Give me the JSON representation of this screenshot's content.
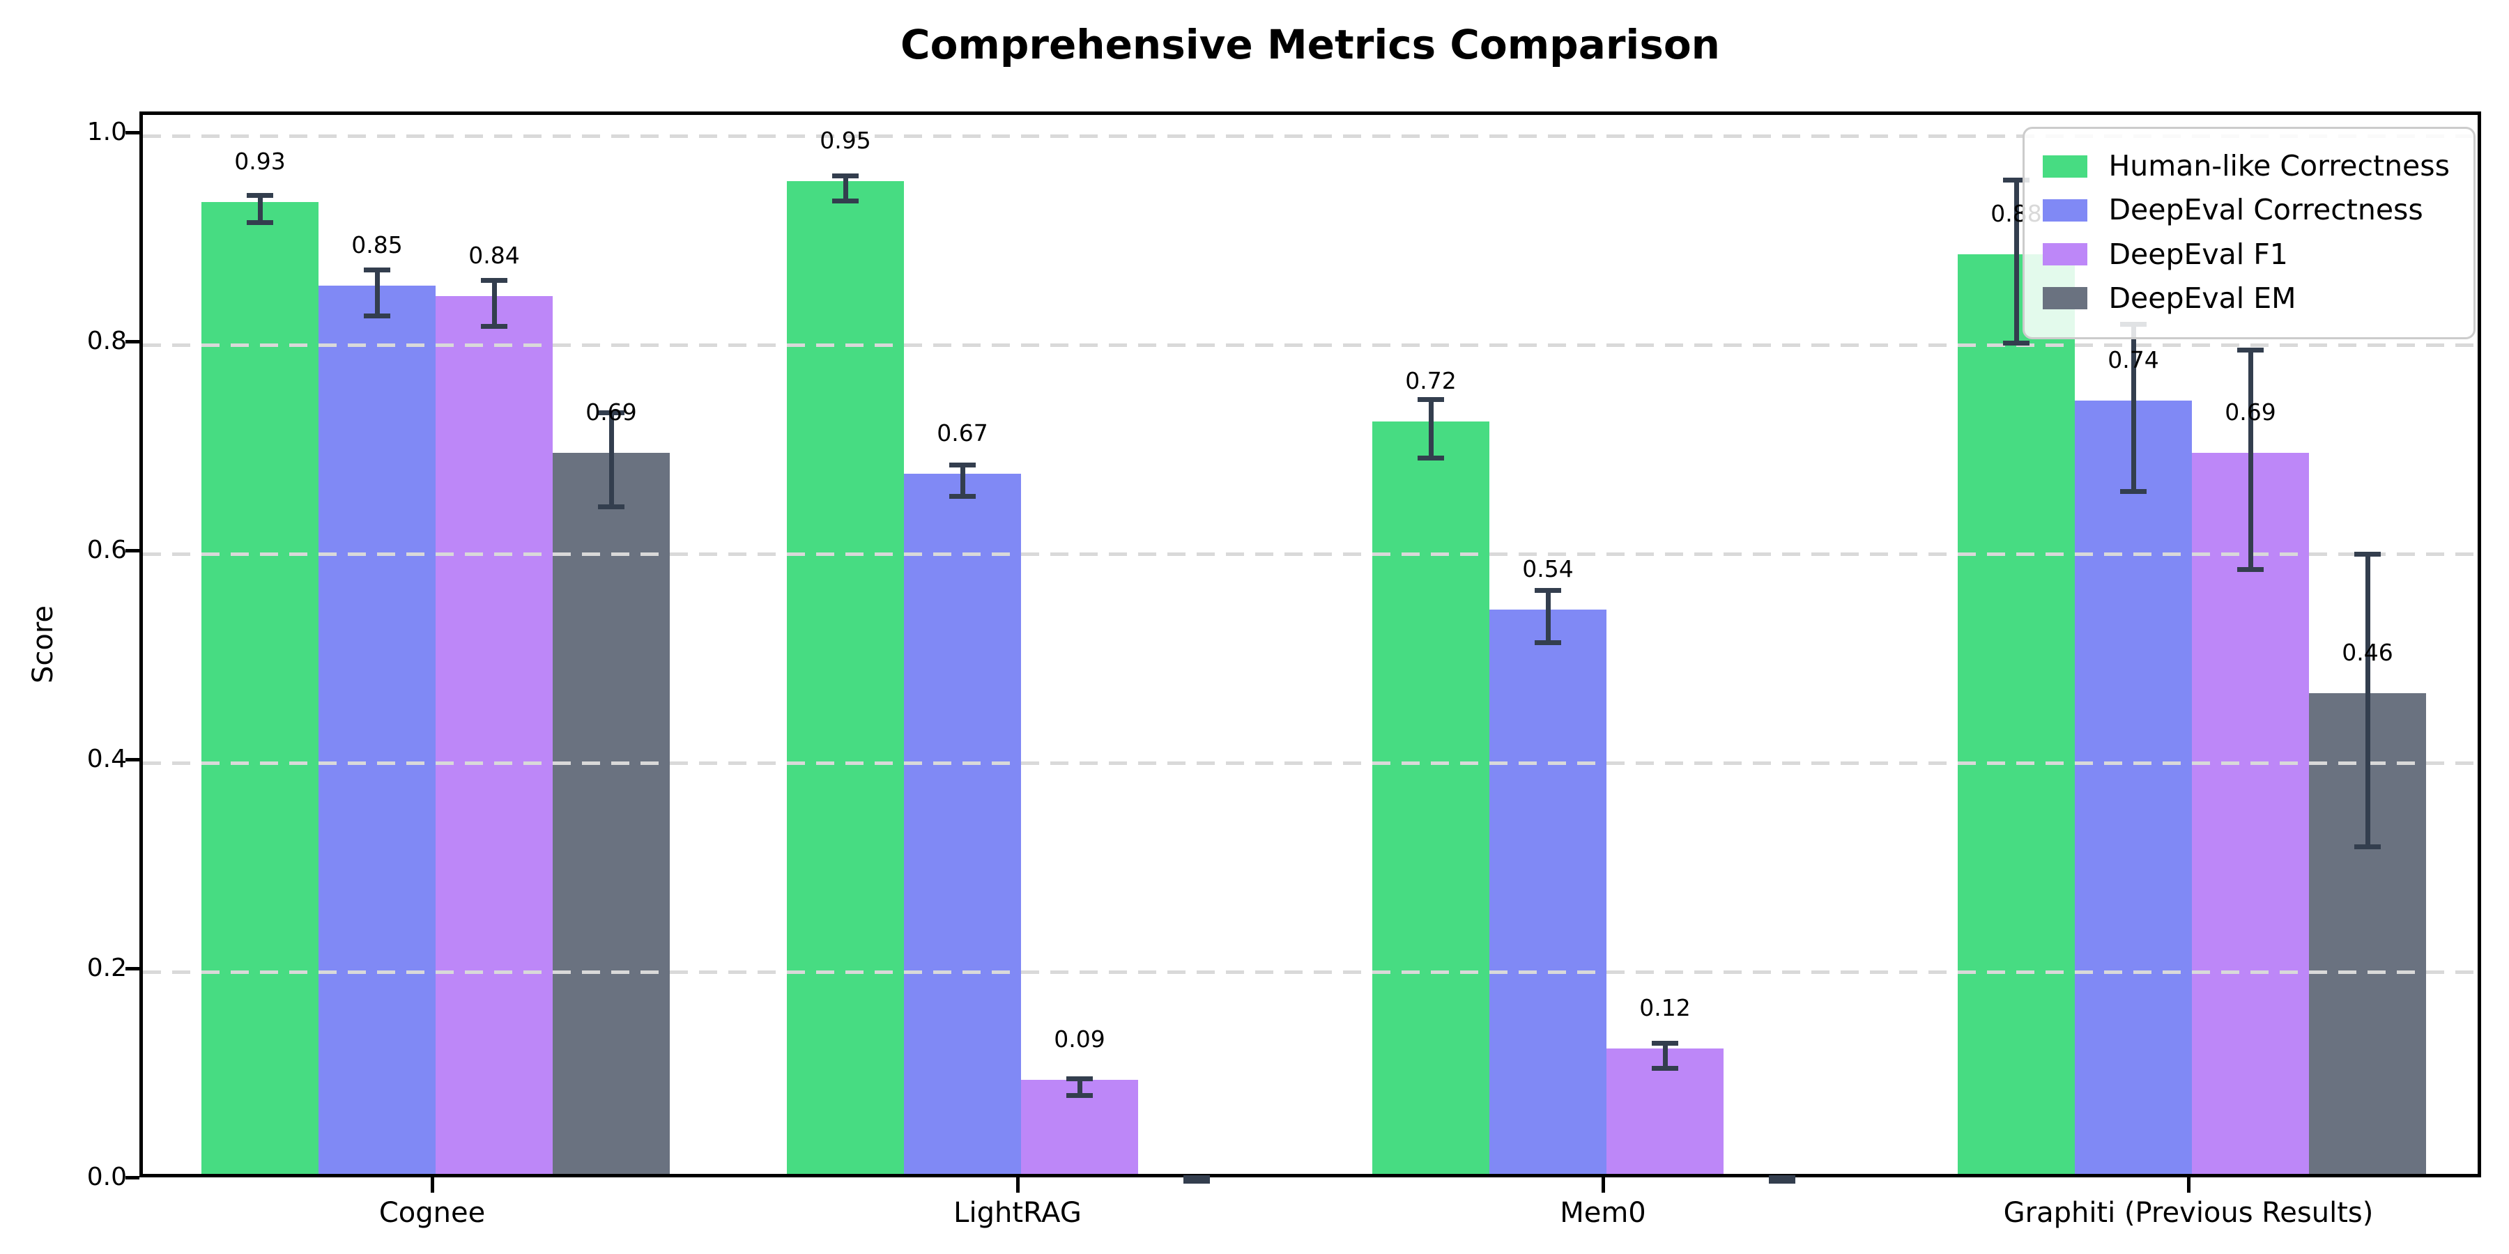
{
  "chart_data": {
    "type": "bar",
    "title": "Comprehensive Metrics Comparison",
    "xlabel": "",
    "ylabel": "Score",
    "categories": [
      "Cognee",
      "LightRAG",
      "Mem0",
      "Graphiti (Previous Results)"
    ],
    "series": [
      {
        "name": "Human-like Correctness",
        "color": "#47dc82",
        "values": [
          0.93,
          0.95,
          0.72,
          0.88
        ],
        "errors": [
          0.013,
          0.012,
          0.028,
          0.078
        ],
        "labels": [
          "0.93",
          "0.95",
          "0.72",
          "0.88"
        ]
      },
      {
        "name": "DeepEval Correctness",
        "color": "#8089f5",
        "values": [
          0.85,
          0.67,
          0.54,
          0.74
        ],
        "errors": [
          0.022,
          0.015,
          0.025,
          0.08
        ],
        "labels": [
          "0.85",
          "0.67",
          "0.54",
          "0.74"
        ]
      },
      {
        "name": "DeepEval F1",
        "color": "#bd87f8",
        "values": [
          0.84,
          0.09,
          0.12,
          0.69
        ],
        "errors": [
          0.022,
          0.008,
          0.012,
          0.105
        ],
        "labels": [
          "0.84",
          "0.09",
          "0.12",
          "0.69"
        ]
      },
      {
        "name": "DeepEval EM",
        "color": "#6a7280",
        "values": [
          0.69,
          0.0,
          0.0,
          0.46
        ],
        "errors": [
          0.045,
          0.003,
          0.003,
          0.14
        ],
        "labels": [
          "0.69",
          "",
          "",
          "0.46"
        ]
      }
    ],
    "yticks": {
      "values": [
        0.0,
        0.2,
        0.4,
        0.6,
        0.8,
        1.0
      ],
      "labels": [
        "0.0",
        "0.2",
        "0.4",
        "0.6",
        "0.8",
        "1.0"
      ]
    },
    "ylim": [
      0,
      1.02
    ],
    "grid": "dashed-horizontal",
    "legend_position": "upper right",
    "style": {
      "error_color": "#333e4e",
      "grid_color": "#d9d9d9",
      "legend_border": "#cccccc",
      "axis_color": "#000000"
    }
  }
}
